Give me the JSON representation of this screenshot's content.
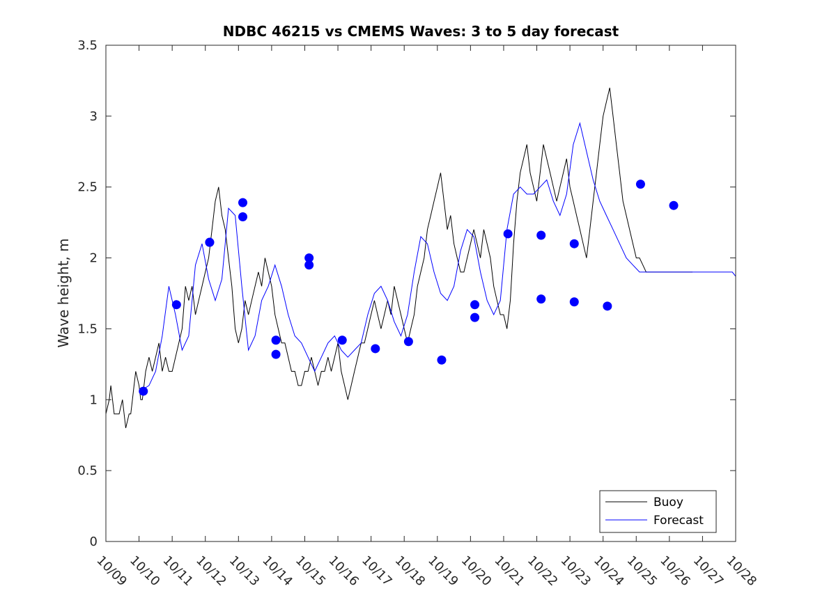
{
  "chart_data": {
    "type": "line",
    "title": "NDBC 46215 vs CMEMS Waves: 3 to 5 day forecast",
    "xlabel": "",
    "ylabel": "Wave height, m",
    "xlim": [
      "10/09",
      "10/28"
    ],
    "ylim": [
      0,
      3.5
    ],
    "x_tick_labels": [
      "10/09",
      "10/10",
      "10/11",
      "10/12",
      "10/13",
      "10/14",
      "10/15",
      "10/16",
      "10/17",
      "10/18",
      "10/19",
      "10/20",
      "10/21",
      "10/22",
      "10/23",
      "10/24",
      "10/25",
      "10/26",
      "10/27",
      "10/28"
    ],
    "y_tick_labels": [
      "0",
      "0.5",
      "1",
      "1.5",
      "2",
      "2.5",
      "3",
      "3.5"
    ],
    "y_ticks": [
      0,
      0.5,
      1,
      1.5,
      2,
      2.5,
      3,
      3.5
    ],
    "grid": false,
    "legend_position": "bottom-right",
    "legend": [
      {
        "name": "Buoy",
        "color": "#000000"
      },
      {
        "name": "Forecast",
        "color": "#0000ff"
      }
    ],
    "series": [
      {
        "name": "Buoy",
        "color": "#000000",
        "x_day_offset": [
          0,
          0.1,
          0.15,
          0.2,
          0.25,
          0.3,
          0.4,
          0.5,
          0.6,
          0.7,
          0.75,
          0.8,
          0.85,
          0.9,
          1,
          1.05,
          1.1,
          1.15,
          1.2,
          1.3,
          1.4,
          1.5,
          1.6,
          1.7,
          1.8,
          1.9,
          2,
          2.1,
          2.2,
          2.3,
          2.4,
          2.5,
          2.6,
          2.7,
          2.8,
          2.9,
          3,
          3.1,
          3.2,
          3.3,
          3.4,
          3.5,
          3.6,
          3.7,
          3.8,
          3.9,
          4,
          4.1,
          4.2,
          4.3,
          4.4,
          4.5,
          4.6,
          4.7,
          4.8,
          4.9,
          5,
          5.1,
          5.2,
          5.3,
          5.4,
          5.5,
          5.6,
          5.7,
          5.8,
          5.9,
          6,
          6.1,
          6.2,
          6.3,
          6.4,
          6.5,
          6.6,
          6.7,
          6.8,
          6.9,
          7,
          7.1,
          7.2,
          7.3,
          7.4,
          7.5,
          7.6,
          7.7,
          7.8,
          7.9,
          8,
          8.1,
          8.2,
          8.3,
          8.4,
          8.5,
          8.6,
          8.7,
          8.8,
          8.9,
          9,
          9.1,
          9.2,
          9.3,
          9.4,
          9.5,
          9.6,
          9.7,
          9.8,
          9.9,
          10,
          10.1,
          10.2,
          10.3,
          10.4,
          10.5,
          10.6,
          10.7,
          10.8,
          10.9,
          11,
          11.1,
          11.2,
          11.3,
          11.4,
          11.5,
          11.6,
          11.7,
          11.8,
          11.9,
          12,
          12.1,
          12.2,
          12.3,
          12.4,
          12.5,
          12.6,
          12.7,
          12.8,
          12.9,
          13,
          13.1,
          13.2,
          13.3,
          13.4,
          13.5,
          13.6,
          13.7,
          13.8,
          13.9,
          14,
          14.1,
          14.2,
          14.3,
          14.4,
          14.5,
          14.6,
          14.7,
          14.8,
          14.9,
          15,
          15.1,
          15.2,
          15.3,
          15.4,
          15.5,
          15.6,
          15.7,
          15.8,
          15.9,
          16,
          16.1,
          16.2,
          16.3,
          16.4,
          16.5,
          16.6,
          16.7,
          16.8,
          16.9,
          17,
          17.1,
          17.2,
          17.3,
          17.4,
          17.5,
          17.6,
          17.7,
          17.8,
          17.9,
          18,
          18.1
        ],
        "values": [
          0.9,
          1.0,
          1.1,
          1.0,
          0.9,
          0.9,
          0.9,
          1.0,
          0.8,
          0.9,
          0.9,
          1.0,
          1.1,
          1.2,
          1.1,
          1.0,
          1.0,
          1.1,
          1.2,
          1.3,
          1.2,
          1.3,
          1.4,
          1.2,
          1.3,
          1.2,
          1.2,
          1.3,
          1.4,
          1.5,
          1.8,
          1.7,
          1.8,
          1.6,
          1.7,
          1.8,
          1.9,
          2.0,
          2.2,
          2.4,
          2.5,
          2.3,
          2.2,
          2.0,
          1.8,
          1.5,
          1.4,
          1.5,
          1.7,
          1.6,
          1.7,
          1.8,
          1.9,
          1.8,
          2.0,
          1.9,
          1.8,
          1.6,
          1.5,
          1.4,
          1.4,
          1.3,
          1.2,
          1.2,
          1.1,
          1.1,
          1.2,
          1.2,
          1.3,
          1.2,
          1.1,
          1.2,
          1.2,
          1.3,
          1.2,
          1.3,
          1.4,
          1.2,
          1.1,
          1.0,
          1.1,
          1.2,
          1.3,
          1.4,
          1.4,
          1.5,
          1.6,
          1.7,
          1.6,
          1.5,
          1.6,
          1.7,
          1.6,
          1.8,
          1.7,
          1.6,
          1.5,
          1.4,
          1.5,
          1.6,
          1.8,
          1.9,
          2.0,
          2.2,
          2.3,
          2.4,
          2.5,
          2.6,
          2.4,
          2.2,
          2.3,
          2.1,
          2.0,
          1.9,
          1.9,
          2.0,
          2.1,
          2.2,
          2.1,
          2.0,
          2.2,
          2.1,
          2.0,
          1.8,
          1.7,
          1.6,
          1.6,
          1.5,
          1.7,
          2.1,
          2.4,
          2.6,
          2.7,
          2.8,
          2.6,
          2.5,
          2.4,
          2.6,
          2.8,
          2.7,
          2.6,
          2.5,
          2.4,
          2.5,
          2.6,
          2.7,
          2.5,
          2.4,
          2.3,
          2.2,
          2.1,
          2.0,
          2.2,
          2.4,
          2.6,
          2.8,
          3.0,
          3.1,
          3.2,
          3.0,
          2.8,
          2.6,
          2.4,
          2.3,
          2.2,
          2.1,
          2.0,
          2.0,
          1.95,
          1.9,
          1.9,
          1.9,
          1.9,
          1.9,
          1.9,
          1.9,
          1.9,
          1.9,
          1.9,
          1.9,
          1.9,
          1.9,
          1.9,
          1.9
        ]
      },
      {
        "name": "Forecast",
        "color": "#0000ff",
        "x_day_offset": [
          1.1,
          1.3,
          1.5,
          1.7,
          1.9,
          2.1,
          2.3,
          2.5,
          2.7,
          2.9,
          3.1,
          3.3,
          3.5,
          3.7,
          3.9,
          4.1,
          4.3,
          4.5,
          4.7,
          4.9,
          5.1,
          5.3,
          5.5,
          5.7,
          5.9,
          6.1,
          6.3,
          6.5,
          6.7,
          6.9,
          7.1,
          7.3,
          7.5,
          7.7,
          7.9,
          8.1,
          8.3,
          8.5,
          8.7,
          8.9,
          9.1,
          9.3,
          9.5,
          9.7,
          9.9,
          10.1,
          10.3,
          10.5,
          10.7,
          10.9,
          11.1,
          11.3,
          11.5,
          11.7,
          11.9,
          12.1,
          12.3,
          12.5,
          12.7,
          12.9,
          13.1,
          13.3,
          13.5,
          13.7,
          13.9,
          14.1,
          14.3,
          14.5,
          14.7,
          14.9,
          15.1,
          15.3,
          15.5,
          15.7,
          15.9,
          16.1,
          16.3,
          16.5,
          16.7,
          16.9,
          17.1,
          17.3,
          17.5,
          17.7,
          17.9,
          18.1,
          18.3,
          18.5,
          18.7,
          18.9,
          19.0
        ],
        "values": [
          1.07,
          1.1,
          1.2,
          1.45,
          1.8,
          1.6,
          1.35,
          1.45,
          1.95,
          2.1,
          1.85,
          1.7,
          1.85,
          2.35,
          2.3,
          1.8,
          1.35,
          1.45,
          1.7,
          1.8,
          1.95,
          1.8,
          1.6,
          1.45,
          1.4,
          1.3,
          1.2,
          1.3,
          1.4,
          1.45,
          1.35,
          1.3,
          1.35,
          1.4,
          1.6,
          1.75,
          1.8,
          1.7,
          1.55,
          1.45,
          1.6,
          1.9,
          2.15,
          2.1,
          1.9,
          1.75,
          1.7,
          1.8,
          2.05,
          2.2,
          2.15,
          1.9,
          1.7,
          1.6,
          1.7,
          2.2,
          2.45,
          2.5,
          2.45,
          2.45,
          2.5,
          2.55,
          2.4,
          2.3,
          2.45,
          2.8,
          2.95,
          2.75,
          2.55,
          2.4,
          2.3,
          2.2,
          2.1,
          2.0,
          1.95,
          1.9,
          1.9,
          1.9,
          1.9,
          1.9,
          1.9,
          1.9,
          1.9,
          1.9,
          1.9,
          1.9,
          1.9,
          1.9,
          1.9,
          1.9,
          1.87
        ]
      }
    ],
    "markers": {
      "name": "Forecast",
      "color": "#0000ff",
      "x_day_offset": [
        1.13,
        2.13,
        3.13,
        3.13,
        4.13,
        4.13,
        5.13,
        5.13,
        6.13,
        6.13,
        7.13,
        8.13,
        9.13,
        10.13,
        11.13,
        11.13,
        12.13,
        13.13,
        13.13,
        14.13,
        14.13,
        15.13,
        16.13,
        17.13
      ],
      "values": [
        1.06,
        1.67,
        2.11,
        2.11,
        2.39,
        2.29,
        1.42,
        1.32,
        2.0,
        1.95,
        1.42,
        1.36,
        1.41,
        1.28,
        1.67,
        1.58,
        2.17,
        1.71,
        2.16,
        2.1,
        1.69,
        1.66,
        2.52,
        2.37
      ]
    }
  }
}
